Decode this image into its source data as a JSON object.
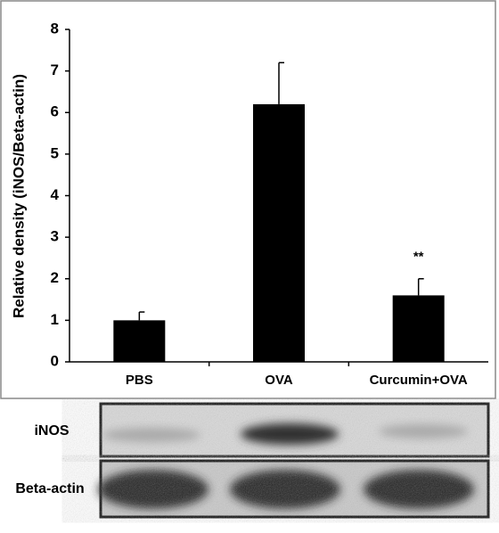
{
  "chart_data": {
    "type": "bar",
    "y_label": "Relative density (iNOS/Beta-actin)",
    "categories": [
      "PBS",
      "OVA",
      "Curcumin+OVA"
    ],
    "values": [
      1.0,
      6.2,
      1.6
    ],
    "errors": [
      0.2,
      1.0,
      0.4
    ],
    "value_annotations": [
      null,
      null,
      "**"
    ],
    "color": "#000000",
    "ylim": [
      0,
      8
    ],
    "yticks": [
      0,
      1,
      2,
      3,
      4,
      5,
      6,
      7,
      8
    ],
    "grid": false
  },
  "blot": {
    "rows": [
      "iNOS",
      "Beta-actin"
    ]
  }
}
